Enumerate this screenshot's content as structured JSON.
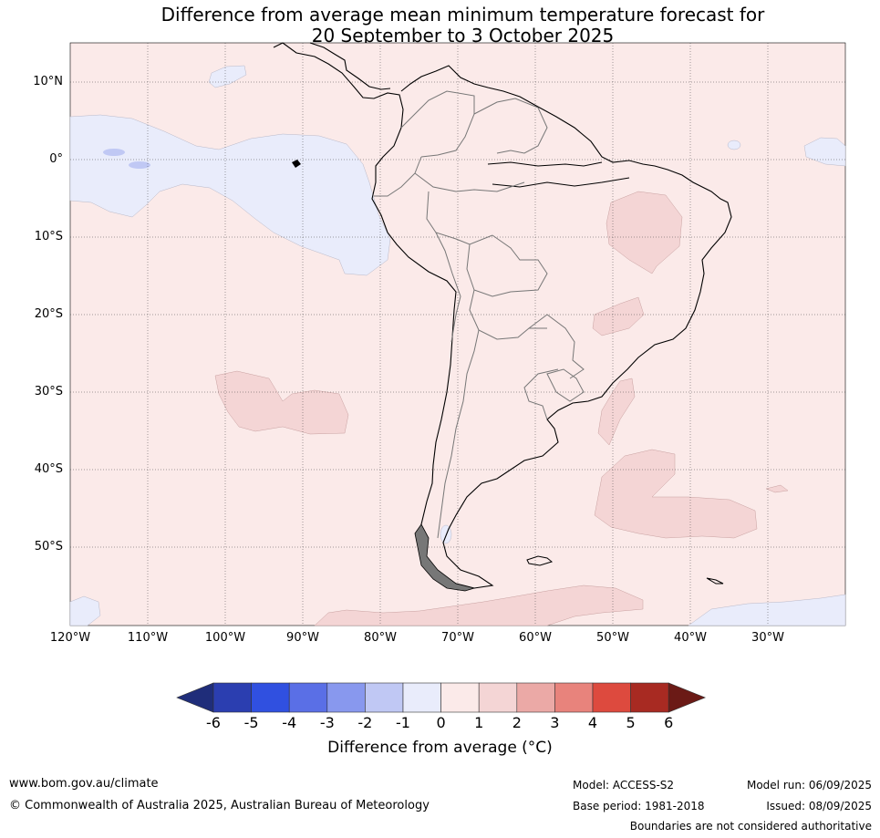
{
  "title": {
    "line1": "Difference from average mean minimum temperature forecast for",
    "line2": "20 September to 3 October 2025"
  },
  "map": {
    "background_color": "#fbeae9",
    "negative_shade_color": "#e9ecfb",
    "positive_shade_color": "#f4d5d5",
    "lat_labels": [
      "10°N",
      "0°",
      "10°S",
      "20°S",
      "30°S",
      "40°S",
      "50°S"
    ],
    "lon_labels": [
      "120°W",
      "110°W",
      "100°W",
      "90°W",
      "80°W",
      "70°W",
      "60°W",
      "50°W",
      "40°W",
      "30°W"
    ]
  },
  "colorbar": {
    "ticks": [
      "-6",
      "-5",
      "-4",
      "-3",
      "-2",
      "-1",
      "0",
      "1",
      "2",
      "3",
      "4",
      "5",
      "6"
    ],
    "colors": [
      "#1f2d7a",
      "#2b3eb0",
      "#3050e0",
      "#5a6fe6",
      "#8898ee",
      "#c0c8f4",
      "#e9ecfb",
      "#fbeae9",
      "#f4d5d5",
      "#eba9a6",
      "#e8837c",
      "#dd4a3e",
      "#a82a22",
      "#6b1a16"
    ],
    "label": "Difference from average (°C)"
  },
  "footer": {
    "website": "www.bom.gov.au/climate",
    "copyright": "© Commonwealth of Australia 2025, Australian Bureau of Meteorology",
    "model": "Model: ACCESS-S2",
    "base_period": "Base period: 1981-2018",
    "model_run": "Model run: 06/09/2025",
    "issued": "Issued: 08/09/2025",
    "disclaimer": "Boundaries are not considered authoritative"
  }
}
